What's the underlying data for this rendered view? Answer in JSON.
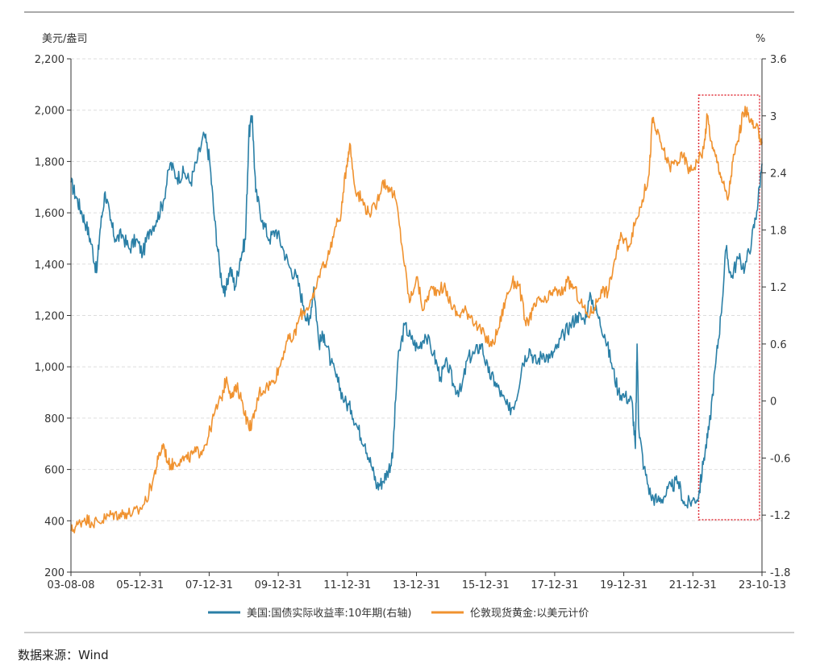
{
  "chart_data": {
    "type": "line",
    "left_axis": {
      "unit": "美元/盎司",
      "ticks": [
        "200",
        "400",
        "600",
        "800",
        "1,000",
        "1,200",
        "1,400",
        "1,600",
        "1,800",
        "2,000",
        "2,200"
      ],
      "range": [
        200,
        2200
      ]
    },
    "right_axis": {
      "unit": "%",
      "ticks": [
        "-1.8",
        "-1.2",
        "-0.6",
        "0",
        "0.6",
        "1.2",
        "1.8",
        "2.4",
        "3",
        "3.6"
      ],
      "range": [
        -1.8,
        3.6
      ]
    },
    "x_ticks": [
      "03-08-08",
      "05-12-31",
      "07-12-31",
      "09-12-31",
      "11-12-31",
      "13-12-31",
      "15-12-31",
      "17-12-31",
      "19-12-31",
      "21-12-31",
      "23-10-13"
    ],
    "x_range": [
      2003.6,
      2023.8
    ],
    "grid": "horizontal dashed",
    "highlight": {
      "x_range": [
        2021.95,
        2023.8
      ],
      "note": "red dotted box"
    },
    "series": [
      {
        "name": "美国:国债实际收益率:10年期(右轴)",
        "axis": "right",
        "color": "#2a7fa6",
        "points": [
          [
            2003.6,
            2.3
          ],
          [
            2003.75,
            2.15
          ],
          [
            2003.9,
            2.0
          ],
          [
            2004.05,
            1.85
          ],
          [
            2004.2,
            1.65
          ],
          [
            2004.35,
            1.35
          ],
          [
            2004.45,
            1.8
          ],
          [
            2004.6,
            2.2
          ],
          [
            2004.75,
            1.9
          ],
          [
            2004.9,
            1.7
          ],
          [
            2005.1,
            1.75
          ],
          [
            2005.3,
            1.6
          ],
          [
            2005.5,
            1.7
          ],
          [
            2005.7,
            1.55
          ],
          [
            2005.9,
            1.8
          ],
          [
            2006.1,
            1.9
          ],
          [
            2006.3,
            2.1
          ],
          [
            2006.5,
            2.5
          ],
          [
            2006.7,
            2.35
          ],
          [
            2006.9,
            2.4
          ],
          [
            2007.1,
            2.3
          ],
          [
            2007.3,
            2.55
          ],
          [
            2007.5,
            2.8
          ],
          [
            2007.65,
            2.55
          ],
          [
            2007.8,
            1.9
          ],
          [
            2007.95,
            1.4
          ],
          [
            2008.1,
            1.1
          ],
          [
            2008.25,
            1.4
          ],
          [
            2008.4,
            1.2
          ],
          [
            2008.55,
            1.5
          ],
          [
            2008.7,
            1.7
          ],
          [
            2008.8,
            2.8
          ],
          [
            2008.9,
            3.0
          ],
          [
            2009.0,
            2.2
          ],
          [
            2009.2,
            1.9
          ],
          [
            2009.4,
            1.7
          ],
          [
            2009.6,
            1.8
          ],
          [
            2009.8,
            1.6
          ],
          [
            2010.0,
            1.4
          ],
          [
            2010.2,
            1.3
          ],
          [
            2010.4,
            1.0
          ],
          [
            2010.55,
            0.8
          ],
          [
            2010.7,
            1.2
          ],
          [
            2010.85,
            0.6
          ],
          [
            2011.0,
            0.7
          ],
          [
            2011.2,
            0.4
          ],
          [
            2011.4,
            0.2
          ],
          [
            2011.6,
            0.0
          ],
          [
            2011.8,
            -0.1
          ],
          [
            2012.0,
            -0.3
          ],
          [
            2012.2,
            -0.45
          ],
          [
            2012.4,
            -0.7
          ],
          [
            2012.55,
            -0.9
          ],
          [
            2012.7,
            -0.85
          ],
          [
            2012.85,
            -0.75
          ],
          [
            2013.0,
            -0.6
          ],
          [
            2013.15,
            0.4
          ],
          [
            2013.35,
            0.8
          ],
          [
            2013.55,
            0.65
          ],
          [
            2013.75,
            0.55
          ],
          [
            2013.95,
            0.7
          ],
          [
            2014.2,
            0.5
          ],
          [
            2014.4,
            0.25
          ],
          [
            2014.6,
            0.4
          ],
          [
            2014.8,
            0.15
          ],
          [
            2015.0,
            0.1
          ],
          [
            2015.2,
            0.45
          ],
          [
            2015.4,
            0.5
          ],
          [
            2015.6,
            0.6
          ],
          [
            2015.8,
            0.3
          ],
          [
            2016.0,
            0.2
          ],
          [
            2016.2,
            0.05
          ],
          [
            2016.4,
            -0.1
          ],
          [
            2016.6,
            0.0
          ],
          [
            2016.8,
            0.4
          ],
          [
            2017.0,
            0.55
          ],
          [
            2017.2,
            0.4
          ],
          [
            2017.4,
            0.5
          ],
          [
            2017.6,
            0.45
          ],
          [
            2017.8,
            0.55
          ],
          [
            2018.0,
            0.7
          ],
          [
            2018.2,
            0.8
          ],
          [
            2018.4,
            0.9
          ],
          [
            2018.6,
            0.85
          ],
          [
            2018.8,
            1.1
          ],
          [
            2019.0,
            0.9
          ],
          [
            2019.2,
            0.7
          ],
          [
            2019.4,
            0.4
          ],
          [
            2019.6,
            0.1
          ],
          [
            2019.8,
            0.05
          ],
          [
            2020.0,
            0.0
          ],
          [
            2020.1,
            -0.5
          ],
          [
            2020.15,
            0.6
          ],
          [
            2020.2,
            -0.3
          ],
          [
            2020.35,
            -0.7
          ],
          [
            2020.55,
            -1.0
          ],
          [
            2020.75,
            -1.05
          ],
          [
            2020.95,
            -1.0
          ],
          [
            2021.15,
            -0.9
          ],
          [
            2021.35,
            -0.85
          ],
          [
            2021.55,
            -1.1
          ],
          [
            2021.75,
            -1.05
          ],
          [
            2021.95,
            -1.0
          ],
          [
            2022.1,
            -0.6
          ],
          [
            2022.25,
            -0.3
          ],
          [
            2022.45,
            0.4
          ],
          [
            2022.6,
            0.9
          ],
          [
            2022.75,
            1.6
          ],
          [
            2022.9,
            1.3
          ],
          [
            2023.1,
            1.5
          ],
          [
            2023.3,
            1.4
          ],
          [
            2023.5,
            1.7
          ],
          [
            2023.65,
            2.0
          ],
          [
            2023.8,
            2.5
          ]
        ]
      },
      {
        "name": "伦敦现货黄金:以美元计价",
        "axis": "left",
        "color": "#f0922f",
        "points": [
          [
            2003.6,
            360
          ],
          [
            2003.8,
            385
          ],
          [
            2004.0,
            410
          ],
          [
            2004.2,
            395
          ],
          [
            2004.4,
            395
          ],
          [
            2004.6,
            410
          ],
          [
            2004.8,
            425
          ],
          [
            2005.0,
            425
          ],
          [
            2005.2,
            430
          ],
          [
            2005.4,
            430
          ],
          [
            2005.6,
            440
          ],
          [
            2005.8,
            480
          ],
          [
            2006.0,
            560
          ],
          [
            2006.15,
            640
          ],
          [
            2006.3,
            700
          ],
          [
            2006.45,
            620
          ],
          [
            2006.6,
            620
          ],
          [
            2006.8,
            640
          ],
          [
            2007.0,
            640
          ],
          [
            2007.2,
            665
          ],
          [
            2007.4,
            670
          ],
          [
            2007.6,
            720
          ],
          [
            2007.8,
            820
          ],
          [
            2008.0,
            880
          ],
          [
            2008.15,
            960
          ],
          [
            2008.3,
            880
          ],
          [
            2008.45,
            920
          ],
          [
            2008.6,
            870
          ],
          [
            2008.8,
            760
          ],
          [
            2008.95,
            800
          ],
          [
            2009.1,
            900
          ],
          [
            2009.3,
            920
          ],
          [
            2009.5,
            940
          ],
          [
            2009.7,
            1000
          ],
          [
            2009.9,
            1100
          ],
          [
            2010.1,
            1110
          ],
          [
            2010.3,
            1200
          ],
          [
            2010.5,
            1230
          ],
          [
            2010.7,
            1270
          ],
          [
            2010.9,
            1380
          ],
          [
            2011.1,
            1420
          ],
          [
            2011.3,
            1530
          ],
          [
            2011.5,
            1600
          ],
          [
            2011.65,
            1780
          ],
          [
            2011.75,
            1870
          ],
          [
            2011.9,
            1700
          ],
          [
            2012.1,
            1650
          ],
          [
            2012.3,
            1600
          ],
          [
            2012.5,
            1620
          ],
          [
            2012.7,
            1720
          ],
          [
            2012.9,
            1700
          ],
          [
            2013.1,
            1650
          ],
          [
            2013.3,
            1450
          ],
          [
            2013.5,
            1250
          ],
          [
            2013.7,
            1350
          ],
          [
            2013.9,
            1220
          ],
          [
            2014.1,
            1300
          ],
          [
            2014.3,
            1300
          ],
          [
            2014.5,
            1310
          ],
          [
            2014.7,
            1250
          ],
          [
            2014.9,
            1200
          ],
          [
            2015.1,
            1220
          ],
          [
            2015.3,
            1200
          ],
          [
            2015.5,
            1150
          ],
          [
            2015.7,
            1120
          ],
          [
            2015.9,
            1080
          ],
          [
            2016.1,
            1150
          ],
          [
            2016.3,
            1260
          ],
          [
            2016.5,
            1330
          ],
          [
            2016.7,
            1320
          ],
          [
            2016.9,
            1160
          ],
          [
            2017.1,
            1220
          ],
          [
            2017.3,
            1260
          ],
          [
            2017.5,
            1250
          ],
          [
            2017.7,
            1300
          ],
          [
            2017.9,
            1280
          ],
          [
            2018.1,
            1330
          ],
          [
            2018.3,
            1310
          ],
          [
            2018.5,
            1250
          ],
          [
            2018.7,
            1200
          ],
          [
            2018.9,
            1230
          ],
          [
            2019.1,
            1300
          ],
          [
            2019.3,
            1290
          ],
          [
            2019.5,
            1420
          ],
          [
            2019.7,
            1510
          ],
          [
            2019.9,
            1470
          ],
          [
            2020.1,
            1560
          ],
          [
            2020.3,
            1650
          ],
          [
            2020.5,
            1750
          ],
          [
            2020.6,
            1970
          ],
          [
            2020.7,
            1920
          ],
          [
            2020.9,
            1850
          ],
          [
            2021.1,
            1780
          ],
          [
            2021.3,
            1800
          ],
          [
            2021.5,
            1820
          ],
          [
            2021.7,
            1760
          ],
          [
            2021.9,
            1800
          ],
          [
            2022.1,
            1850
          ],
          [
            2022.2,
            1980
          ],
          [
            2022.35,
            1850
          ],
          [
            2022.5,
            1800
          ],
          [
            2022.65,
            1720
          ],
          [
            2022.8,
            1650
          ],
          [
            2022.95,
            1800
          ],
          [
            2023.1,
            1880
          ],
          [
            2023.25,
            1990
          ],
          [
            2023.4,
            1990
          ],
          [
            2023.55,
            1930
          ],
          [
            2023.7,
            1920
          ],
          [
            2023.8,
            1870
          ]
        ]
      }
    ]
  },
  "source": "数据来源：Wind"
}
